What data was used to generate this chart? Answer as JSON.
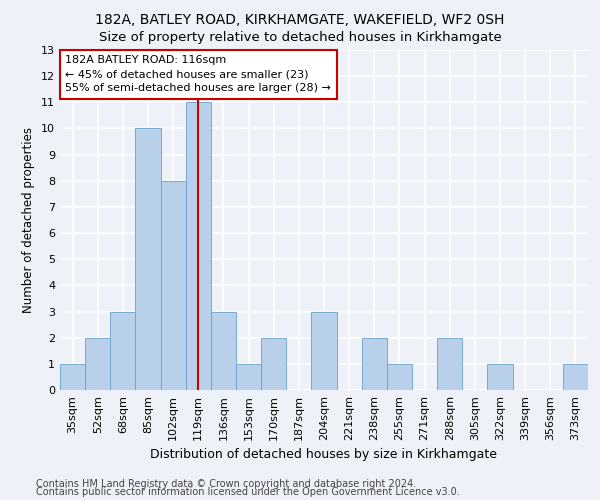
{
  "title1": "182A, BATLEY ROAD, KIRKHAMGATE, WAKEFIELD, WF2 0SH",
  "title2": "Size of property relative to detached houses in Kirkhamgate",
  "xlabel": "Distribution of detached houses by size in Kirkhamgate",
  "ylabel": "Number of detached properties",
  "categories": [
    "35sqm",
    "52sqm",
    "68sqm",
    "85sqm",
    "102sqm",
    "119sqm",
    "136sqm",
    "153sqm",
    "170sqm",
    "187sqm",
    "204sqm",
    "221sqm",
    "238sqm",
    "255sqm",
    "271sqm",
    "288sqm",
    "305sqm",
    "322sqm",
    "339sqm",
    "356sqm",
    "373sqm"
  ],
  "values": [
    1,
    2,
    3,
    10,
    8,
    11,
    3,
    1,
    2,
    0,
    3,
    0,
    2,
    1,
    0,
    2,
    0,
    1,
    0,
    0,
    1
  ],
  "bar_color": "#b8d0ea",
  "bar_edge_color": "#6aa0cc",
  "vline_index": 5,
  "vline_color": "#cc0000",
  "annotation_line1": "182A BATLEY ROAD: 116sqm",
  "annotation_line2": "← 45% of detached houses are smaller (23)",
  "annotation_line3": "55% of semi-detached houses are larger (28) →",
  "annotation_box_color": "#ffffff",
  "annotation_box_edge": "#cc0000",
  "ylim": [
    0,
    13
  ],
  "yticks": [
    0,
    1,
    2,
    3,
    4,
    5,
    6,
    7,
    8,
    9,
    10,
    11,
    12,
    13
  ],
  "footer1": "Contains HM Land Registry data © Crown copyright and database right 2024.",
  "footer2": "Contains public sector information licensed under the Open Government Licence v3.0.",
  "bg_color": "#eef2f8",
  "grid_color": "#ffffff",
  "title1_fontsize": 10,
  "title2_fontsize": 9.5,
  "xlabel_fontsize": 9,
  "ylabel_fontsize": 8.5,
  "tick_fontsize": 8,
  "annotation_fontsize": 8,
  "footer_fontsize": 7
}
